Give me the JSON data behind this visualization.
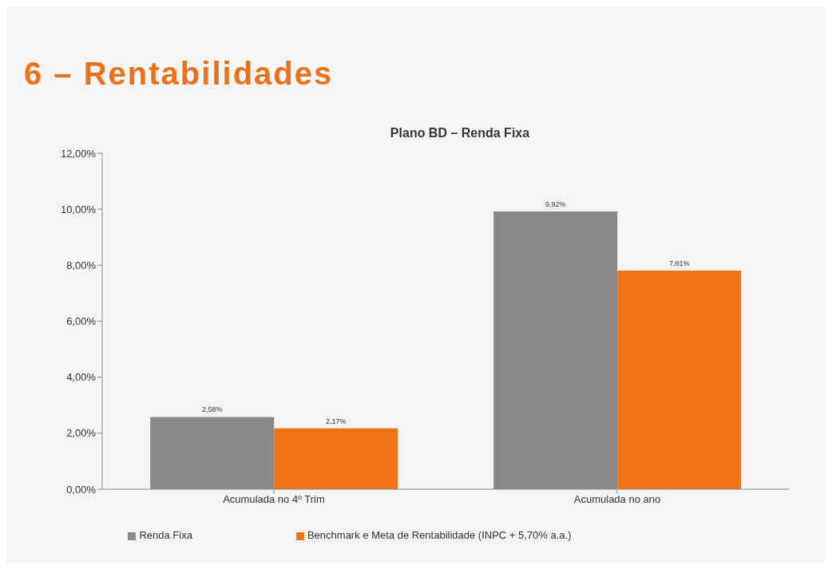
{
  "chart_data": {
    "type": "bar",
    "title": "6 – Rentabilidades",
    "subtitle": "Plano BD – Renda Fixa",
    "categories": [
      "Acumulada no 4º Trim",
      "Acumulada no ano"
    ],
    "series": [
      {
        "name": "Renda Fixa",
        "color": "#898989",
        "values": [
          2.58,
          9.92
        ],
        "value_labels": [
          "2,58%",
          "9,92%"
        ]
      },
      {
        "name": "Benchmark e Meta de Rentabilidade (INPC + 5,70% a.a.)",
        "color": "#f07314",
        "values": [
          2.17,
          7.81
        ],
        "value_labels": [
          "2,17%",
          "7,81%"
        ]
      }
    ],
    "ylim": [
      0,
      12
    ],
    "yticks": [
      {
        "value": 0,
        "label": "0,00%"
      },
      {
        "value": 2,
        "label": "2,00%"
      },
      {
        "value": 4,
        "label": "4,00%"
      },
      {
        "value": 6,
        "label": "6,00%"
      },
      {
        "value": 8,
        "label": "8,00%"
      },
      {
        "value": 10,
        "label": "10,00%"
      },
      {
        "value": 12,
        "label": "12,00%"
      }
    ],
    "grid": false,
    "legend": "bottom"
  }
}
